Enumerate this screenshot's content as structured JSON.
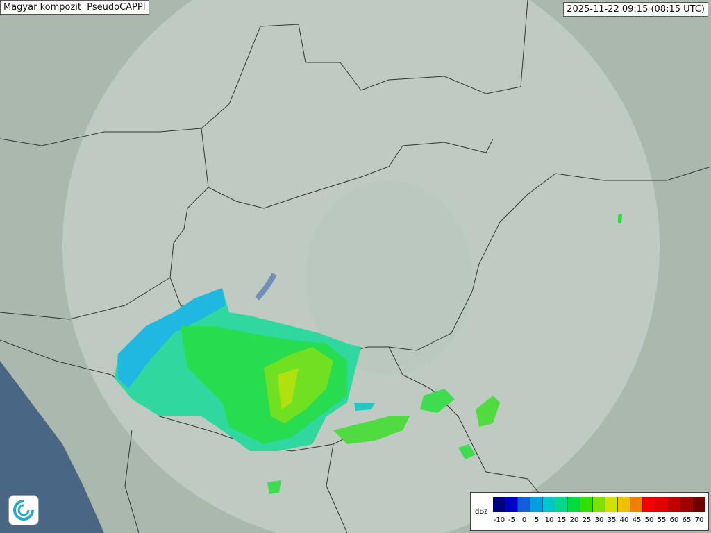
{
  "header": {
    "title": "Magyar kompozit  PseudoCAPPI",
    "timestamp": "2025-11-22 09:15 (08:15 UTC)"
  },
  "legend": {
    "unit": "dBz",
    "levels": [
      -10,
      -5,
      0,
      5,
      10,
      15,
      20,
      25,
      30,
      35,
      40,
      45,
      50,
      55,
      60,
      65,
      70
    ],
    "colors": [
      "#00007f",
      "#0000c8",
      "#1060d8",
      "#00a0e0",
      "#00c8c8",
      "#00d890",
      "#00dc40",
      "#30e000",
      "#80e000",
      "#d0e000",
      "#f0c000",
      "#f08000",
      "#f00000",
      "#e00000",
      "#c00000",
      "#a00000",
      "#700000"
    ]
  }
}
